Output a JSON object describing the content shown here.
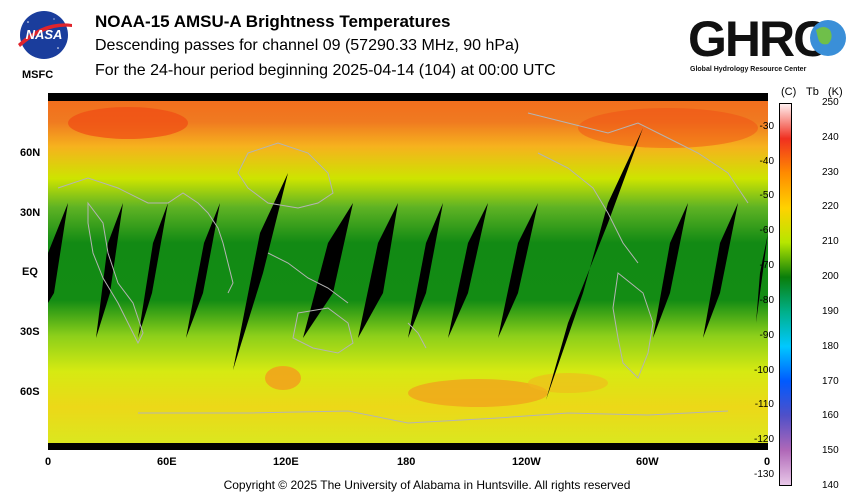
{
  "header": {
    "line1": "NOAA-15 AMSU-A Brightness Temperatures",
    "line2": "Descending passes for channel 09 (57290.33 MHz, 90 hPa)",
    "line3": "For the 24-hour period beginning 2025-04-14 (104) at 00:00 UTC"
  },
  "logos": {
    "nasa_text": "NASA",
    "msfc_label": "MSFC",
    "ghrc_text": "GHRC",
    "ghrc_subtitle": "Global Hydrology Resource Center"
  },
  "map": {
    "lat_labels": [
      "60N",
      "30N",
      "EQ",
      "30S",
      "60S"
    ],
    "lon_labels": [
      "0",
      "60E",
      "120E",
      "180",
      "120W",
      "60W",
      "0"
    ],
    "colors": {
      "missing": "#000000",
      "coastline": "#b4b4b4"
    }
  },
  "colorbar": {
    "header_c": "(C)",
    "header_tb": "Tb",
    "header_k": "(K)",
    "kelvin_ticks": [
      "250",
      "240",
      "230",
      "220",
      "210",
      "200",
      "190",
      "180",
      "170",
      "160",
      "150",
      "140"
    ],
    "celsius_ticks": [
      "-30",
      "-40",
      "-50",
      "-60",
      "-70",
      "-80",
      "-90",
      "-100",
      "-110",
      "-120",
      "-130"
    ],
    "stops": [
      "#fff0f0",
      "#f03020",
      "#ff8c00",
      "#ffd200",
      "#b6e600",
      "#0a7e0a",
      "#00b08a",
      "#00c8ff",
      "#005aff",
      "#5050c8",
      "#b068b8",
      "#e8c8e8"
    ]
  },
  "footer": {
    "copyright": "Copyright © 2025 The University of Alabama in Huntsville.  All rights reserved"
  }
}
